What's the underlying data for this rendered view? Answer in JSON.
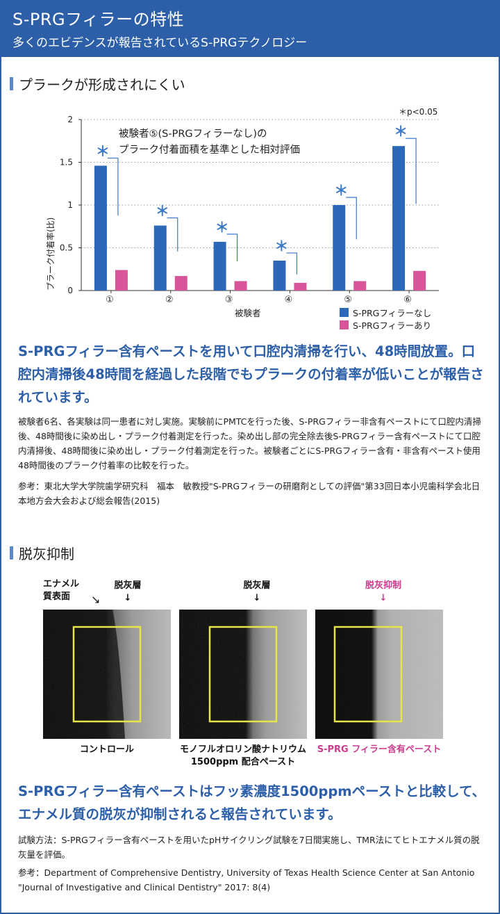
{
  "header": {
    "title": "S-PRGフィラーの特性",
    "subtitle": "多くのエビデンスが報告されているS-PRGテクノロジー"
  },
  "section1": {
    "title": "プラークが形成されにくい",
    "lead": "S-PRGフィラー含有ペーストを用いて口腔内清掃を行い、48時間放置。口腔内清掃後48時間を経過した段階でもプラークの付着率が低いことが報告されています。",
    "body": "被験者6名、各実験は同一患者に対し実施。実験前にPMTCを行った後、S-PRGフィラー非含有ペーストにて口腔内清掃後、48時間後に染め出し・プラーク付着測定を行った。染め出し部の完全除去後S-PRGフィラー含有ペーストにて口腔内清掃後、48時間後に染め出し・プラーク付着測定を行った。被験者ごとにS-PRGフィラー含有・非含有ペースト使用48時間後のプラーク付着率の比較を行った。",
    "reference": "参考：東北大学大学院歯学研究科　福本　敏教授\"S-PRGフィラーの研磨剤としての評価\"第33回日本小児歯科学会北日本地方会大会および総会報告(2015)"
  },
  "chart_data": {
    "type": "bar",
    "categories": [
      "①",
      "②",
      "③",
      "④",
      "⑤",
      "⑥"
    ],
    "series": [
      {
        "name": "S-PRGフィラーなし",
        "values": [
          1.46,
          0.76,
          0.57,
          0.35,
          1.0,
          1.69
        ],
        "color": "#2c68b8"
      },
      {
        "name": "S-PRGフィラーあり",
        "values": [
          0.24,
          0.17,
          0.11,
          0.09,
          0.11,
          0.23
        ],
        "color": "#d9559a"
      }
    ],
    "xlabel": "被験者",
    "ylabel": "プラーク付着率(比)",
    "ylim": [
      0,
      2
    ],
    "yticks": [
      "0",
      "0.5",
      "1",
      "1.5",
      "2"
    ],
    "annotation_line1": "被験者⑤(S-PRGフィラーなし)の",
    "annotation_line2": "プラーク付着面積を基準とした相対評価",
    "significance_note": "＊p<0.05",
    "significance_marker": "＊",
    "grid": "dotted",
    "legend_position": "bottom-right"
  },
  "section2": {
    "title": "脱灰抑制",
    "labels": {
      "enamel_surface_line1": "エナメル",
      "enamel_surface_line2": "質表面",
      "demin_layer_1": "脱灰層",
      "demin_layer_2": "脱灰層",
      "demin_suppression": "脱灰抑制",
      "down_arrow": "↓",
      "diag_arrow": "↘"
    },
    "images": [
      {
        "caption": "コントロール"
      },
      {
        "caption_line1": "モノフルオロリン酸ナトリウム",
        "caption_line2": "1500ppm 配合ペースト"
      },
      {
        "caption": "S-PRG フィラー含有ペースト"
      }
    ],
    "lead": "S-PRGフィラー含有ペーストはフッ素濃度1500ppmペーストと比較して、エナメル質の脱灰が抑制されると報告されています。",
    "method": "試験方法：S-PRGフィラー含有ペーストを用いたpHサイクリング試験を7日間実施し、TMR法にてヒトエナメル質の脱灰量を評価。",
    "reference": "参考：Department of Comprehensive Dentistry, University of Texas Health Science Center at San Antonio \"Journal of Investigative and Clinical Dentistry\" 2017: 8(4)"
  },
  "colors": {
    "brand": "#2c5fa8",
    "series_blue": "#2c68b8",
    "series_pink": "#d9559a",
    "highlight_yellow": "#e6e64a"
  }
}
